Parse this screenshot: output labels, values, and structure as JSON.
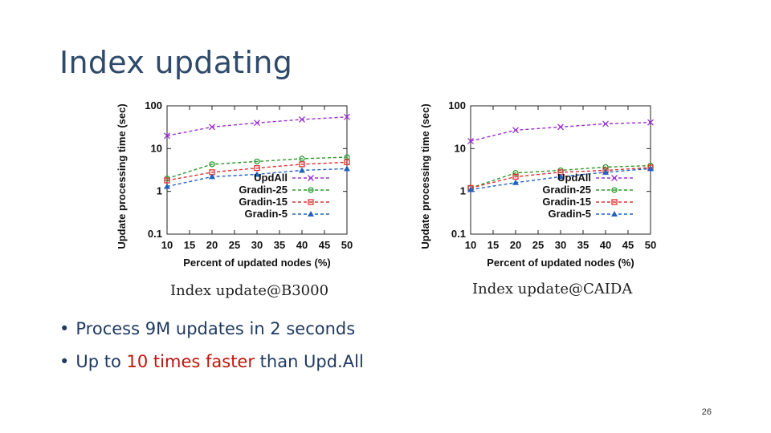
{
  "slide": {
    "title": "Index updating",
    "page_number": "26",
    "bullets": [
      {
        "text": "Process 9M updates in 2 seconds"
      },
      {
        "prefix": "Up to ",
        "highlight": "10 times faster",
        "suffix": " than Upd.All"
      }
    ],
    "colors": {
      "title": "#2f4a6a",
      "highlight": "#c0140c"
    }
  },
  "chart_data": [
    {
      "type": "line",
      "caption": "Index update@B3000",
      "xlabel": "Percent of updated nodes (%)",
      "ylabel": "Update processing time (sec)",
      "yscale": "log",
      "ylim": [
        0.1,
        100
      ],
      "xlim": [
        10,
        50
      ],
      "x_ticks": [
        "10",
        "15",
        "20",
        "25",
        "30",
        "35",
        "40",
        "45",
        "50"
      ],
      "y_ticks": [
        "100",
        "10",
        "1",
        "0.1"
      ],
      "legend_placement": "lower-right",
      "x": [
        10,
        20,
        30,
        40,
        50
      ],
      "series": [
        {
          "name": "UpdAll",
          "color": "#9b30d0",
          "marker": "x",
          "values": [
            20,
            32,
            40,
            48,
            55
          ]
        },
        {
          "name": "Gradin-25",
          "color": "#2a9a2a",
          "marker": "circle",
          "values": [
            2.0,
            4.3,
            5.0,
            5.8,
            6.3
          ]
        },
        {
          "name": "Gradin-15",
          "color": "#e03030",
          "marker": "square",
          "values": [
            1.8,
            2.8,
            3.5,
            4.3,
            4.8
          ]
        },
        {
          "name": "Gradin-5",
          "color": "#2060c0",
          "marker": "triangle",
          "values": [
            1.3,
            2.2,
            2.5,
            3.1,
            3.4
          ]
        }
      ]
    },
    {
      "type": "line",
      "caption": "Index update@CAIDA",
      "xlabel": "Percent of updated nodes (%)",
      "ylabel": "Update processing time (sec)",
      "yscale": "log",
      "ylim": [
        0.1,
        100
      ],
      "xlim": [
        10,
        50
      ],
      "x_ticks": [
        "10",
        "15",
        "20",
        "25",
        "30",
        "35",
        "40",
        "45",
        "50"
      ],
      "y_ticks": [
        "100",
        "10",
        "1",
        "0.1"
      ],
      "legend_placement": "lower-right",
      "x": [
        10,
        20,
        30,
        40,
        50
      ],
      "series": [
        {
          "name": "UpdAll",
          "color": "#9b30d0",
          "marker": "x",
          "values": [
            15,
            27,
            32,
            38,
            41
          ]
        },
        {
          "name": "Gradin-25",
          "color": "#2a9a2a",
          "marker": "circle",
          "values": [
            1.2,
            2.7,
            3.1,
            3.7,
            4.0
          ]
        },
        {
          "name": "Gradin-15",
          "color": "#e03030",
          "marker": "square",
          "values": [
            1.2,
            2.2,
            2.8,
            3.1,
            3.6
          ]
        },
        {
          "name": "Gradin-5",
          "color": "#2060c0",
          "marker": "triangle",
          "values": [
            1.1,
            1.6,
            2.2,
            2.8,
            3.4
          ]
        }
      ]
    }
  ]
}
